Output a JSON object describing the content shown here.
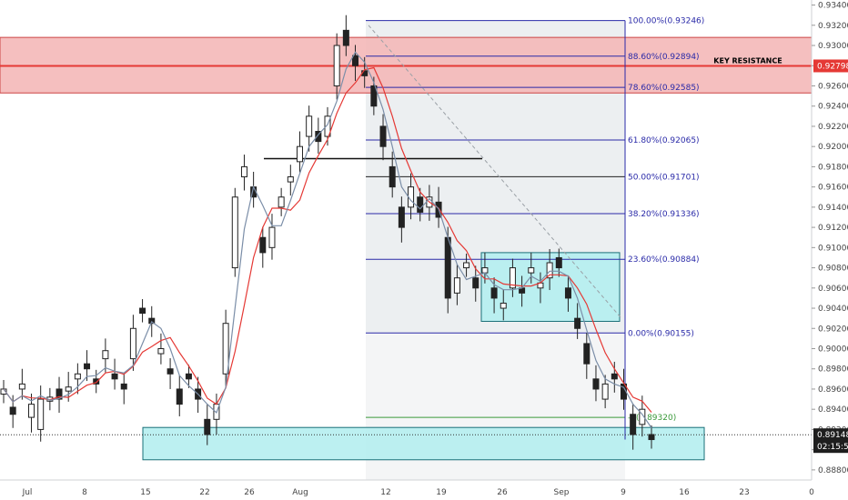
{
  "chart_data": {
    "type": "candlestick",
    "title": "",
    "xlabel": "",
    "ylabel": "",
    "ylim": [
      0.887,
      0.9345
    ],
    "y_ticks": [
      "0.93400",
      "0.93200",
      "0.93000",
      "0.92800",
      "0.92600",
      "0.92400",
      "0.92200",
      "0.92000",
      "0.91800",
      "0.91600",
      "0.91400",
      "0.91200",
      "0.91000",
      "0.90800",
      "0.90600",
      "0.90400",
      "0.90200",
      "0.90000",
      "0.89800",
      "0.89600",
      "0.89400",
      "0.89200",
      "0.89000",
      "0.88800"
    ],
    "x_ticks": [
      "Jul",
      "8",
      "15",
      "22",
      "26",
      "Aug",
      "12",
      "19",
      "26",
      "Sep",
      "9",
      "16",
      "23",
      "0"
    ],
    "price_path": [
      [
        0.8955,
        0.896
      ],
      [
        0.8942,
        0.8935
      ],
      [
        0.896,
        0.8965
      ],
      [
        0.8932,
        0.8945
      ],
      [
        0.892,
        0.895
      ],
      [
        0.8948,
        0.8952
      ],
      [
        0.896,
        0.895
      ],
      [
        0.8958,
        0.8962
      ],
      [
        0.897,
        0.8975
      ],
      [
        0.8985,
        0.898
      ],
      [
        0.897,
        0.8965
      ],
      [
        0.899,
        0.8998
      ],
      [
        0.8975,
        0.897
      ],
      [
        0.8965,
        0.896
      ],
      [
        0.899,
        0.902
      ],
      [
        0.904,
        0.9035
      ],
      [
        0.903,
        0.9025
      ],
      [
        0.8995,
        0.9
      ],
      [
        0.898,
        0.8975
      ],
      [
        0.896,
        0.8945
      ],
      [
        0.8975,
        0.897
      ],
      [
        0.896,
        0.895
      ],
      [
        0.893,
        0.8915
      ],
      [
        0.893,
        0.8945
      ],
      [
        0.8975,
        0.9025
      ],
      [
        0.908,
        0.915
      ],
      [
        0.917,
        0.918
      ],
      [
        0.916,
        0.915
      ],
      [
        0.911,
        0.9095
      ],
      [
        0.91,
        0.912
      ],
      [
        0.914,
        0.915
      ],
      [
        0.9165,
        0.917
      ],
      [
        0.9185,
        0.92
      ],
      [
        0.921,
        0.923
      ],
      [
        0.9215,
        0.9205
      ],
      [
        0.921,
        0.923
      ],
      [
        0.926,
        0.93
      ],
      [
        0.9315,
        0.93
      ],
      [
        0.929,
        0.928
      ],
      [
        0.9275,
        0.927
      ],
      [
        0.926,
        0.924
      ],
      [
        0.922,
        0.92
      ],
      [
        0.918,
        0.916
      ],
      [
        0.914,
        0.912
      ],
      [
        0.914,
        0.916
      ],
      [
        0.915,
        0.9135
      ],
      [
        0.914,
        0.915
      ],
      [
        0.9145,
        0.913
      ],
      [
        0.911,
        0.905
      ],
      [
        0.9055,
        0.907
      ],
      [
        0.908,
        0.9085
      ],
      [
        0.907,
        0.906
      ],
      [
        0.9075,
        0.908
      ],
      [
        0.906,
        0.905
      ],
      [
        0.904,
        0.9045
      ],
      [
        0.906,
        0.908
      ],
      [
        0.906,
        0.9055
      ],
      [
        0.9075,
        0.908
      ],
      [
        0.906,
        0.9065
      ],
      [
        0.907,
        0.9085
      ],
      [
        0.909,
        0.908
      ],
      [
        0.906,
        0.905
      ],
      [
        0.903,
        0.902
      ],
      [
        0.9005,
        0.8985
      ],
      [
        0.897,
        0.896
      ],
      [
        0.895,
        0.8965
      ],
      [
        0.8975,
        0.897
      ],
      [
        0.8965,
        0.895
      ],
      [
        0.8935,
        0.8915
      ],
      [
        0.8925,
        0.894
      ],
      [
        0.8915,
        0.891
      ]
    ],
    "moving_averages": [
      {
        "color": "#e53935"
      },
      {
        "color": "#7b8ea8"
      }
    ],
    "fibonacci": {
      "levels": [
        {
          "ratio": "100.00%",
          "price": "0.93246",
          "value": 0.93246
        },
        {
          "ratio": "88.60%",
          "price": "0.92894",
          "value": 0.92894
        },
        {
          "ratio": "78.60%",
          "price": "0.92585",
          "value": 0.92585
        },
        {
          "ratio": "61.80%",
          "price": "0.92065",
          "value": 0.92065
        },
        {
          "ratio": "50.00%",
          "price": "0.91701",
          "value": 0.91701
        },
        {
          "ratio": "38.20%",
          "price": "0.91336",
          "value": 0.91336
        },
        {
          "ratio": "23.60%",
          "price": "0.90884",
          "value": 0.90884
        },
        {
          "ratio": "0.00%",
          "price": "0.90155",
          "value": 0.90155
        },
        {
          "ratio": "-2",
          "price": "0.89320",
          "value": 0.8932
        }
      ],
      "color": "#2a2aa8",
      "extension_color": "#3a9a3a"
    },
    "zones": [
      {
        "name": "key-resistance",
        "y1": 0.9253,
        "y2": 0.9308,
        "fill": "#f4b8b8",
        "stroke": "#c44"
      },
      {
        "name": "consolidation-box",
        "y1": 0.9027,
        "y2": 0.9095,
        "fill": "#b5eef0",
        "stroke": "#1a6f78"
      },
      {
        "name": "support-zone",
        "y1": 0.889,
        "y2": 0.8922,
        "fill": "#b5eef0",
        "stroke": "#1a6f78"
      }
    ],
    "key_resistance": {
      "label": "KEY RESISTANCE",
      "price": "0.92798",
      "value": 0.92798,
      "color": "#e53935"
    },
    "current_price": {
      "price": "0.89148",
      "value": 0.89148,
      "countdown": "02:15:50",
      "color": "#1e1e1e"
    },
    "horizontal_line": {
      "value": 0.9188
    },
    "grid": false
  }
}
